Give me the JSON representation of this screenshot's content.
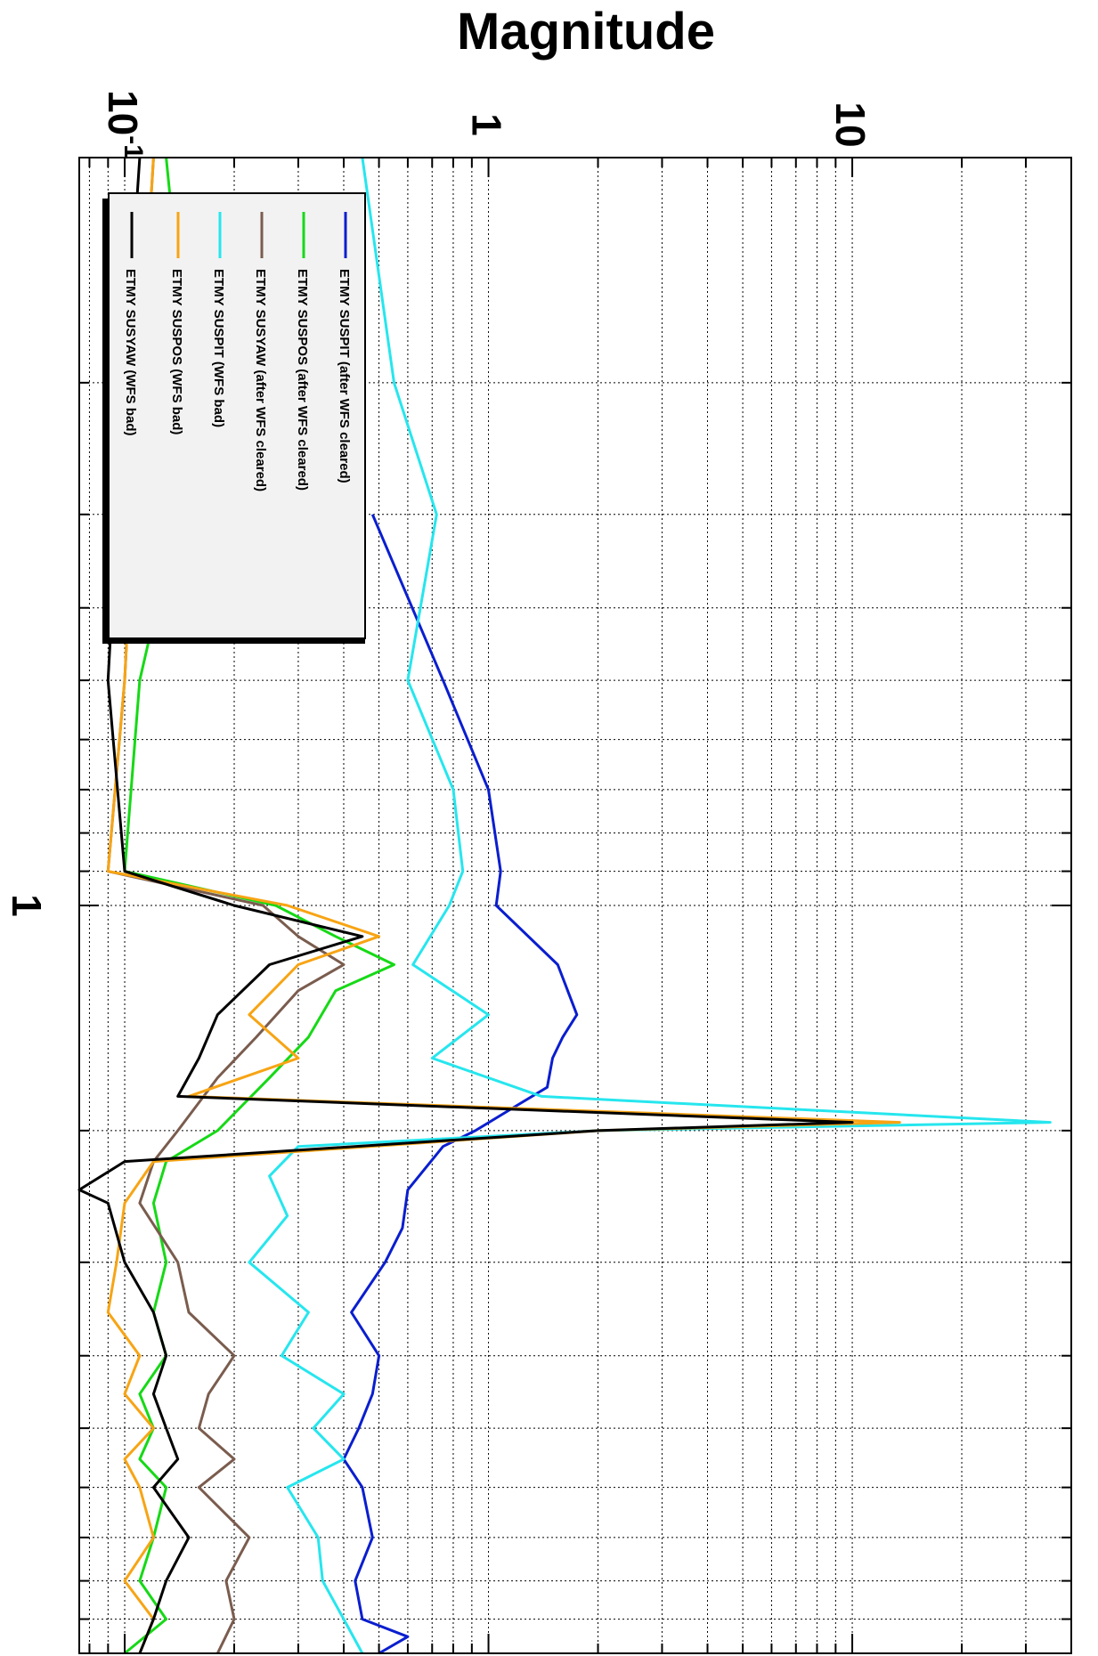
{
  "chart_data": {
    "type": "line",
    "rotated": "90deg clockwise",
    "title": "",
    "ylabel": "Magnitude",
    "xlabel": "",
    "y_scale": "log",
    "ylim": [
      0.075,
      40
    ],
    "x_scale": "log",
    "xlim": [
      0.1,
      10
    ],
    "x_tick_labels": [
      {
        "value": 1,
        "label": "1"
      }
    ],
    "y_tick_labels": [
      {
        "value": 0.1,
        "base": "10",
        "exp": "-1"
      },
      {
        "value": 1,
        "label": "1"
      },
      {
        "value": 10,
        "label": "10"
      }
    ],
    "grid": true,
    "legend_placement": "top-left",
    "series": [
      {
        "name": "ETMY SUSPIT (after WFS cleared)",
        "color": "#0a1ecf",
        "x": [
          0.3,
          0.5,
          0.7,
          0.9,
          1.0,
          1.2,
          1.4,
          1.5,
          1.6,
          1.75,
          1.85,
          2.0,
          2.1,
          2.4,
          2.7,
          3.0,
          3.5,
          4.0,
          4.5,
          5.0,
          5.5,
          6.0,
          7.0,
          8.0,
          9.0,
          9.5,
          10.0
        ],
        "y": [
          0.48,
          0.75,
          1.0,
          1.08,
          1.05,
          1.55,
          1.75,
          1.6,
          1.5,
          1.45,
          1.2,
          0.92,
          0.75,
          0.6,
          0.58,
          0.52,
          0.42,
          0.5,
          0.48,
          0.44,
          0.4,
          0.45,
          0.48,
          0.43,
          0.45,
          0.6,
          0.5
        ]
      },
      {
        "name": "ETMY SUSPOS (after WFS cleared)",
        "color": "#16d916",
        "x": [
          0.1,
          0.2,
          0.3,
          0.5,
          0.9,
          1.0,
          1.1,
          1.2,
          1.3,
          1.5,
          1.7,
          2.0,
          2.2,
          2.5,
          3.0,
          3.5,
          4.0,
          4.5,
          5.0,
          5.5,
          6.0,
          7.0,
          8.0,
          9.0,
          10.0
        ],
        "y": [
          0.13,
          0.15,
          0.14,
          0.11,
          0.1,
          0.26,
          0.38,
          0.55,
          0.38,
          0.32,
          0.25,
          0.18,
          0.13,
          0.12,
          0.13,
          0.12,
          0.13,
          0.11,
          0.12,
          0.11,
          0.13,
          0.12,
          0.11,
          0.13,
          0.1
        ]
      },
      {
        "name": "ETMY SUSYAW (after WFS cleared)",
        "color": "#7a5c4e",
        "x": [
          0.1,
          0.2,
          0.5,
          0.9,
          1.0,
          1.1,
          1.2,
          1.3,
          1.5,
          1.7,
          2.0,
          2.2,
          2.5,
          3.0,
          3.5,
          4.0,
          4.5,
          5.0,
          5.5,
          6.0,
          7.0,
          8.0,
          9.0,
          10.0
        ],
        "y": [
          0.12,
          0.11,
          0.1,
          0.09,
          0.24,
          0.3,
          0.4,
          0.3,
          0.23,
          0.18,
          0.14,
          0.12,
          0.11,
          0.14,
          0.15,
          0.2,
          0.17,
          0.16,
          0.2,
          0.16,
          0.22,
          0.19,
          0.2,
          0.18
        ]
      },
      {
        "name": "ETMY SUSPIT (WFS bad)",
        "color": "#26e6ee",
        "x": [
          0.1,
          0.2,
          0.3,
          0.5,
          0.7,
          0.9,
          1.0,
          1.2,
          1.4,
          1.6,
          1.8,
          1.95,
          2.0,
          2.1,
          2.3,
          2.6,
          3.0,
          3.5,
          4.0,
          4.5,
          5.0,
          5.5,
          6.0,
          7.0,
          8.0,
          9.0,
          10.0
        ],
        "y": [
          0.45,
          0.55,
          0.72,
          0.6,
          0.8,
          0.85,
          0.78,
          0.62,
          1.0,
          0.7,
          1.4,
          35.0,
          2.0,
          0.3,
          0.25,
          0.28,
          0.22,
          0.32,
          0.27,
          0.4,
          0.33,
          0.4,
          0.28,
          0.34,
          0.35,
          0.4,
          0.45
        ]
      },
      {
        "name": "ETMY SUSPOS (WFS bad)",
        "color": "#f7a414",
        "x": [
          0.1,
          0.2,
          0.5,
          0.9,
          1.0,
          1.1,
          1.2,
          1.4,
          1.6,
          1.8,
          1.95,
          2.0,
          2.2,
          2.5,
          3.0,
          3.5,
          4.0,
          4.5,
          5.0,
          5.5,
          6.0,
          7.0,
          8.0,
          9.0,
          10.0
        ],
        "y": [
          0.12,
          0.11,
          0.1,
          0.09,
          0.28,
          0.5,
          0.3,
          0.22,
          0.3,
          0.15,
          13.5,
          2.0,
          0.12,
          0.1,
          0.095,
          0.09,
          0.11,
          0.1,
          0.12,
          0.1,
          0.11,
          0.12,
          0.1,
          0.12,
          0.11
        ]
      },
      {
        "name": "ETMY SUSYAW (WFS bad)",
        "color": "#000000",
        "x": [
          0.1,
          0.2,
          0.5,
          0.9,
          1.0,
          1.1,
          1.2,
          1.4,
          1.6,
          1.8,
          1.95,
          2.0,
          2.2,
          2.4,
          2.5,
          3.0,
          3.5,
          4.0,
          4.5,
          5.0,
          5.5,
          6.0,
          7.0,
          8.0,
          9.0,
          10.0
        ],
        "y": [
          0.11,
          0.1,
          0.09,
          0.1,
          0.2,
          0.45,
          0.25,
          0.18,
          0.16,
          0.14,
          10.0,
          2.0,
          0.1,
          0.075,
          0.09,
          0.1,
          0.12,
          0.13,
          0.12,
          0.13,
          0.14,
          0.12,
          0.15,
          0.13,
          0.12,
          0.11
        ]
      }
    ]
  }
}
